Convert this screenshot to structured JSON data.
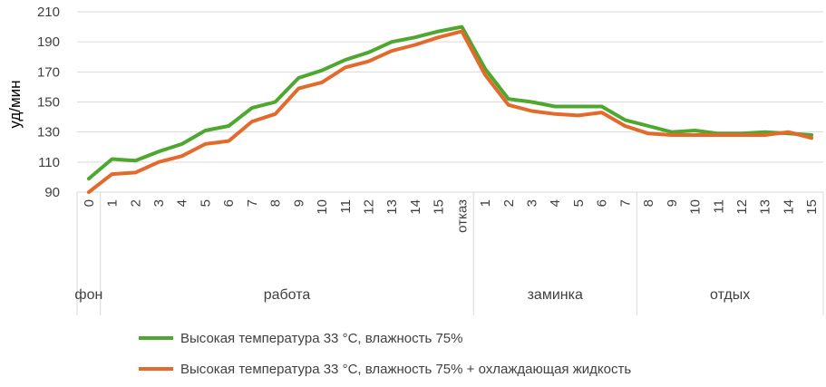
{
  "chart_data": {
    "type": "line",
    "ylabel": "уд/мин",
    "ylim": [
      90,
      210
    ],
    "yticks": [
      90,
      110,
      130,
      150,
      170,
      190,
      210
    ],
    "grid": "horizontal",
    "legend_position": "bottom",
    "categories": [
      "0",
      "1",
      "2",
      "3",
      "4",
      "5",
      "6",
      "7",
      "8",
      "9",
      "10",
      "11",
      "12",
      "13",
      "14",
      "15",
      "отказ",
      "1",
      "2",
      "3",
      "4",
      "5",
      "6",
      "7",
      "8",
      "9",
      "10",
      "11",
      "12",
      "13",
      "14",
      "15"
    ],
    "groups": [
      {
        "label": "фон",
        "start": 0,
        "end": 0
      },
      {
        "label": "работа",
        "start": 1,
        "end": 16
      },
      {
        "label": "заминка",
        "start": 17,
        "end": 23
      },
      {
        "label": "отдых",
        "start": 24,
        "end": 31
      }
    ],
    "series": [
      {
        "name": "Высокая температура 33 °C, влажность 75%",
        "color": "#4EA72E",
        "values": [
          99,
          112,
          111,
          117,
          122,
          131,
          134,
          146,
          150,
          166,
          171,
          178,
          183,
          190,
          193,
          197,
          200,
          172,
          152,
          150,
          147,
          147,
          147,
          138,
          134,
          130,
          131,
          129,
          129,
          130,
          129,
          128
        ]
      },
      {
        "name": "Высокая температура 33 °C, влажность 75% + охлаждающая жидкость",
        "color": "#E46A2B",
        "values": [
          90,
          102,
          103,
          110,
          114,
          122,
          124,
          137,
          142,
          159,
          163,
          173,
          177,
          184,
          188,
          193,
          197,
          168,
          148,
          144,
          142,
          141,
          143,
          134,
          129,
          128,
          128,
          128,
          128,
          128,
          130,
          126
        ]
      }
    ]
  }
}
